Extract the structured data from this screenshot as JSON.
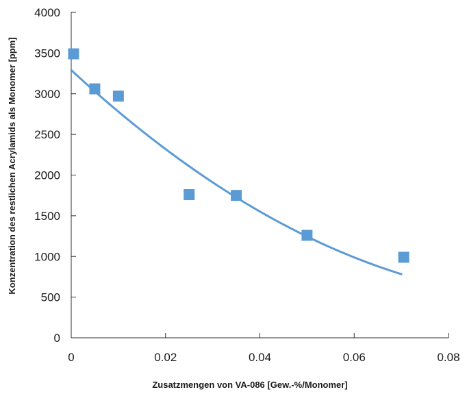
{
  "chart_data": {
    "type": "scatter",
    "title": "",
    "xlabel": "Zusatzmengen von VA-086 [Gew.-%/Monomer]",
    "ylabel": "Konzentration des restlichen Acrylamids als Monomer [ppm]",
    "xlim": [
      0,
      0.08
    ],
    "ylim": [
      0,
      4000
    ],
    "xticks": [
      0,
      0.02,
      0.04,
      0.06,
      0.08
    ],
    "xtick_labels": [
      "0",
      "0.02",
      "0.04",
      "0.06",
      "0.08"
    ],
    "yticks": [
      0,
      500,
      1000,
      1500,
      2000,
      2500,
      3000,
      3500,
      4000
    ],
    "ytick_labels": [
      "0",
      "500",
      "1000",
      "1500",
      "2000",
      "2500",
      "3000",
      "3500",
      "4000"
    ],
    "grid": false,
    "series": [
      {
        "marker": "square",
        "color": "#5b9bd5",
        "x": [
          0.0005,
          0.005,
          0.01,
          0.025,
          0.035,
          0.05,
          0.0705
        ],
        "y": [
          3490,
          3060,
          2970,
          1760,
          1750,
          1260,
          990
        ]
      }
    ],
    "trendline": {
      "type": "polynomial",
      "color": "#5b9bd5",
      "x_range": [
        0,
        0.07
      ],
      "coefficients": [
        3290,
        -53600,
        254000
      ]
    }
  }
}
